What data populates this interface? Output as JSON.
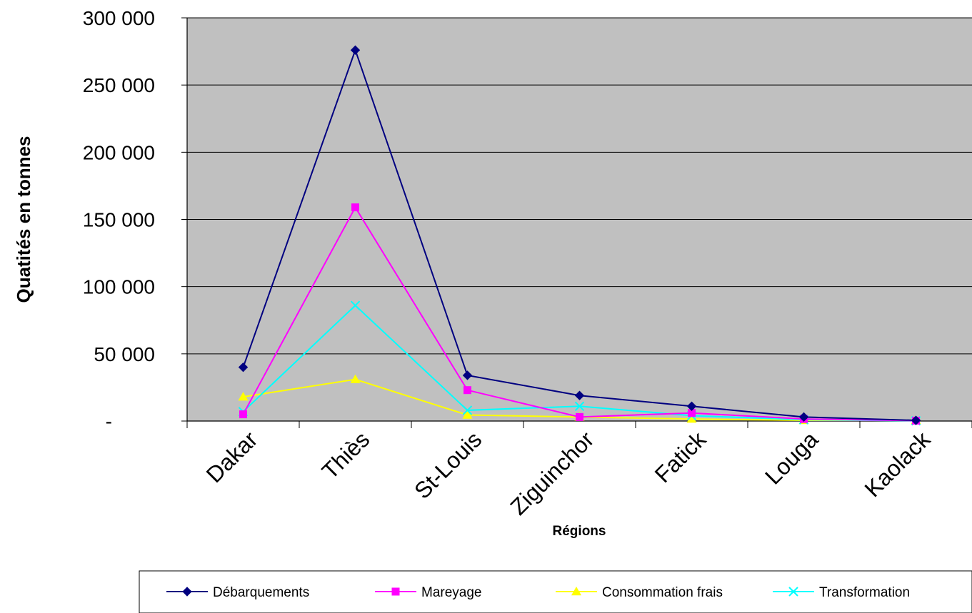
{
  "chart_data": {
    "type": "line",
    "title": "",
    "xlabel": "Régions",
    "ylabel": "Quatités en tonnes",
    "categories": [
      "Dakar",
      "Thiès",
      "St-Louis",
      "Ziguinchor",
      "Fatick",
      "Louga",
      "Kaolack"
    ],
    "ylim": [
      0,
      300000
    ],
    "yticks": [
      {
        "value": 0,
        "label": "-"
      },
      {
        "value": 50000,
        "label": "50 000"
      },
      {
        "value": 100000,
        "label": "100 000"
      },
      {
        "value": 150000,
        "label": "150 000"
      },
      {
        "value": 200000,
        "label": "200 000"
      },
      {
        "value": 250000,
        "label": "250 000"
      },
      {
        "value": 300000,
        "label": "300 000"
      }
    ],
    "grid": true,
    "legend_position": "bottom",
    "plot_background": "#c0c0c0",
    "series": [
      {
        "name": "Débarquements",
        "color": "#000080",
        "marker": "diamond",
        "values": [
          40000,
          276000,
          34000,
          19000,
          11000,
          3000,
          500
        ]
      },
      {
        "name": "Mareyage",
        "color": "#ff00ff",
        "marker": "square",
        "values": [
          5000,
          159000,
          23000,
          3000,
          6000,
          1500,
          300
        ]
      },
      {
        "name": "Consommation frais",
        "color": "#ffff00",
        "marker": "triangle",
        "values": [
          18000,
          31000,
          4500,
          3000,
          1500,
          500,
          500
        ]
      },
      {
        "name": "Transformation",
        "color": "#00ffff",
        "marker": "x",
        "values": [
          7000,
          86000,
          8000,
          11000,
          4000,
          1000,
          200
        ]
      }
    ]
  }
}
